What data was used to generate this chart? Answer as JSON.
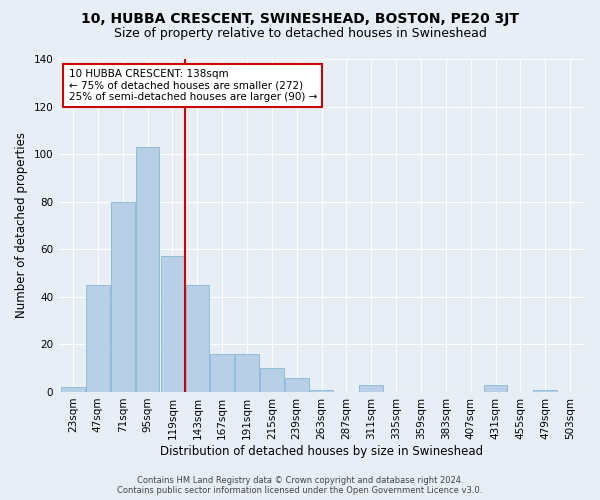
{
  "title": "10, HUBBA CRESCENT, SWINESHEAD, BOSTON, PE20 3JT",
  "subtitle": "Size of property relative to detached houses in Swineshead",
  "xlabel": "Distribution of detached houses by size in Swineshead",
  "ylabel": "Number of detached properties",
  "categories": [
    "23sqm",
    "47sqm",
    "71sqm",
    "95sqm",
    "119sqm",
    "143sqm",
    "167sqm",
    "191sqm",
    "215sqm",
    "239sqm",
    "263sqm",
    "287sqm",
    "311sqm",
    "335sqm",
    "359sqm",
    "383sqm",
    "407sqm",
    "431sqm",
    "455sqm",
    "479sqm",
    "503sqm"
  ],
  "values": [
    2,
    45,
    80,
    103,
    57,
    45,
    16,
    16,
    10,
    6,
    1,
    0,
    3,
    0,
    0,
    0,
    0,
    3,
    0,
    1,
    0
  ],
  "bar_color": "#b8cfe8",
  "bar_edgecolor": "#7aaed4",
  "vline_color": "#cc0000",
  "annotation_text": "10 HUBBA CRESCENT: 138sqm\n← 75% of detached houses are smaller (272)\n25% of semi-detached houses are larger (90) →",
  "annotation_box_color": "#ffffff",
  "annotation_box_edgecolor": "#cc0000",
  "ylim": [
    0,
    140
  ],
  "background_color": "#e8eef5",
  "plot_bg_color": "#e8eef5",
  "footer_line1": "Contains HM Land Registry data © Crown copyright and database right 2024.",
  "footer_line2": "Contains public sector information licensed under the Open Government Licence v3.0.",
  "title_fontsize": 10,
  "subtitle_fontsize": 9,
  "axis_label_fontsize": 8.5,
  "tick_fontsize": 7.5,
  "footer_fontsize": 6.0,
  "vline_pos": 4.5
}
